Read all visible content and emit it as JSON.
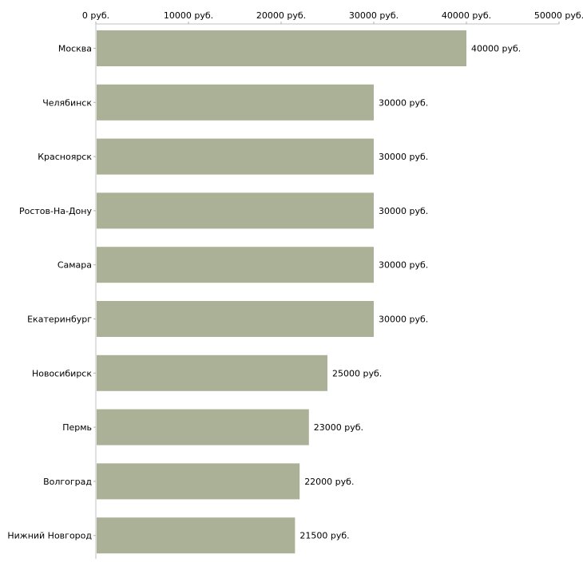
{
  "chart_data": {
    "type": "bar",
    "orientation": "horizontal",
    "categories": [
      "Москва",
      "Челябинск",
      "Красноярск",
      "Ростов-На-Дону",
      "Самара",
      "Екатеринбург",
      "Новосибирск",
      "Пермь",
      "Волгоград",
      "Нижний Новгород"
    ],
    "values": [
      40000,
      30000,
      30000,
      30000,
      30000,
      30000,
      25000,
      23000,
      22000,
      21500
    ],
    "value_labels": [
      "40000 руб.",
      "30000 руб.",
      "30000 руб.",
      "30000 руб.",
      "30000 руб.",
      "30000 руб.",
      "25000 руб.",
      "23000 руб.",
      "22000 руб.",
      "21500 руб."
    ],
    "xticks": [
      0,
      10000,
      20000,
      30000,
      40000,
      50000
    ],
    "xtick_labels": [
      "0 руб.",
      "10000 руб.",
      "20000 руб.",
      "30000 руб.",
      "40000 руб.",
      "50000 руб."
    ],
    "xlim": [
      0,
      50000
    ],
    "axis_position": "top",
    "grid": false,
    "title": "",
    "xlabel": "",
    "ylabel": "",
    "colors": {
      "bar": "#abb197",
      "tick": "#b5b58a",
      "axis": "#c0c0c0"
    }
  }
}
